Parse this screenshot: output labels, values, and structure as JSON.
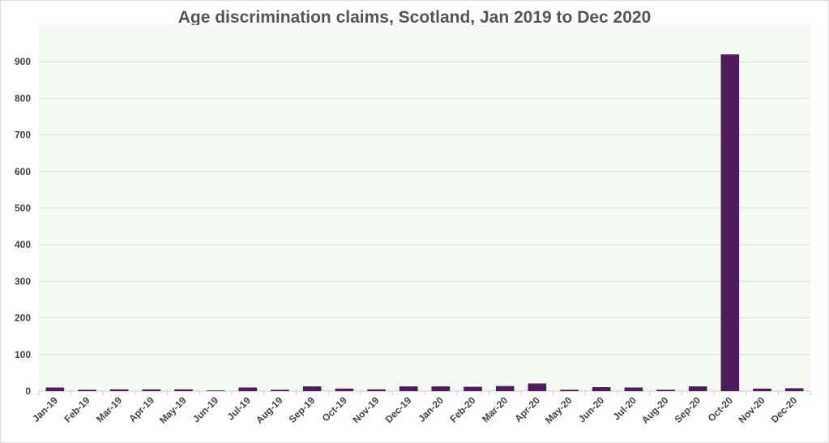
{
  "chart_data": {
    "type": "bar",
    "title": "Age discrimination claims, Scotland, Jan 2019 to Dec 2020",
    "xlabel": "",
    "ylabel": "",
    "ylim": [
      0,
      1000
    ],
    "yticks": [
      0,
      100,
      200,
      300,
      400,
      500,
      600,
      700,
      800,
      900
    ],
    "grid": true,
    "categories": [
      "Jan-19",
      "Feb-19",
      "Mar-19",
      "Apr-19",
      "May-19",
      "Jun-19",
      "Jul-19",
      "Aug-19",
      "Sep-19",
      "Oct-19",
      "Nov-19",
      "Dec-19",
      "Jan-20",
      "Feb-20",
      "Mar-20",
      "Apr-20",
      "May-20",
      "Jun-20",
      "Jul-20",
      "Aug-20",
      "Sep-20",
      "Oct-20",
      "Nov-20",
      "Dec-20"
    ],
    "values": [
      10,
      4,
      5,
      5,
      5,
      2,
      10,
      4,
      13,
      7,
      5,
      13,
      13,
      12,
      14,
      21,
      4,
      11,
      10,
      4,
      13,
      920,
      7,
      8
    ],
    "colors": {
      "bar": "#501a5e",
      "plot_bg": "#f4faf1",
      "grid": "#dcdcdc"
    }
  }
}
